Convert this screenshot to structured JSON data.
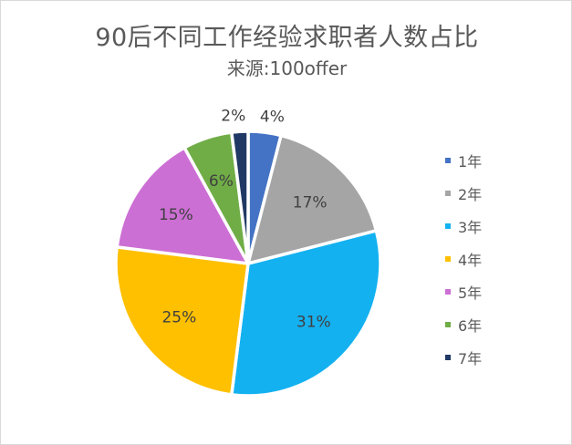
{
  "chart_data": {
    "type": "pie",
    "title": "90后不同工作经验求职者人数占比",
    "subtitle": "来源:100offer",
    "categories": [
      "1年",
      "2年",
      "3年",
      "4年",
      "5年",
      "6年",
      "7年"
    ],
    "values": [
      4,
      17,
      31,
      25,
      15,
      6,
      2
    ],
    "labels": [
      "4%",
      "17%",
      "31%",
      "25%",
      "15%",
      "6%",
      "2%"
    ],
    "colors": [
      "#4472c4",
      "#a5a5a5",
      "#14b1f1",
      "#ffc000",
      "#cc6fd4",
      "#70ad47",
      "#203864"
    ],
    "legend_position": "right"
  }
}
